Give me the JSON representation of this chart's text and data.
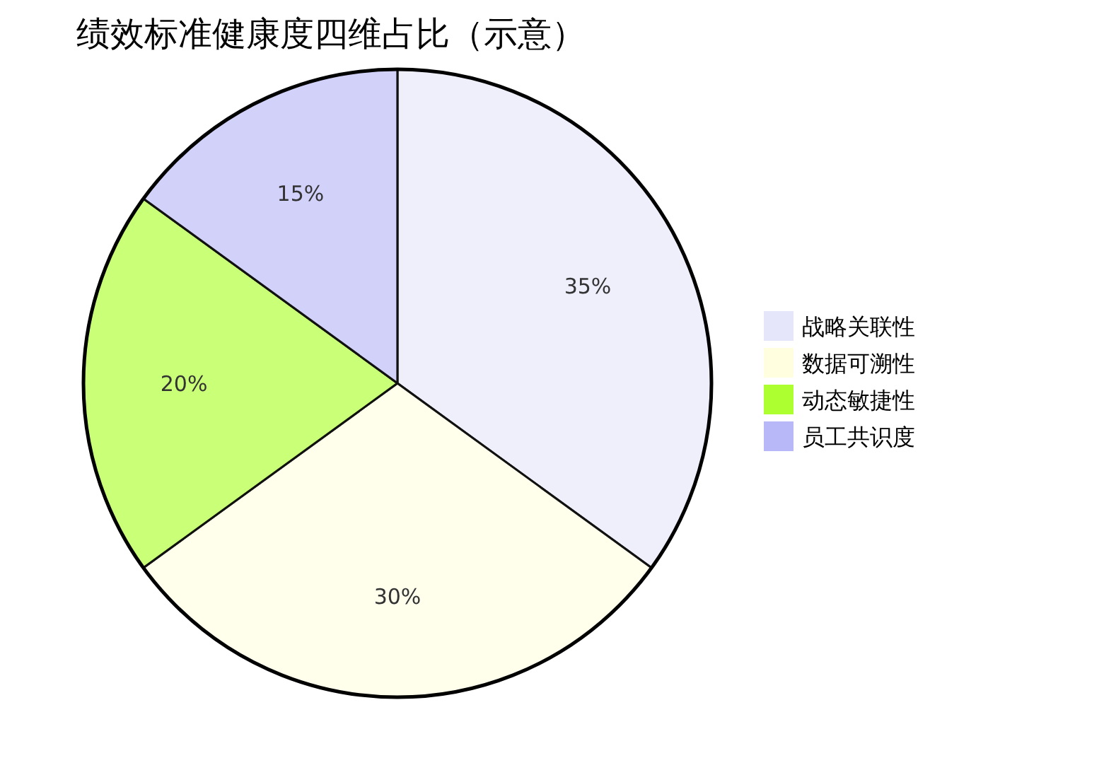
{
  "chart_data": {
    "type": "pie",
    "title": "绩效标准健康度四维占比（示意）",
    "categories": [
      "战略关联性",
      "数据可溯性",
      "动态敏捷性",
      "员工共识度"
    ],
    "values": [
      35,
      30,
      20,
      15
    ],
    "colors": [
      "#e6e6fa",
      "#ffffe0",
      "#adff2f",
      "#b8b8f8"
    ],
    "value_labels": [
      "35%",
      "30%",
      "20%",
      "15%"
    ],
    "legend": "right"
  }
}
